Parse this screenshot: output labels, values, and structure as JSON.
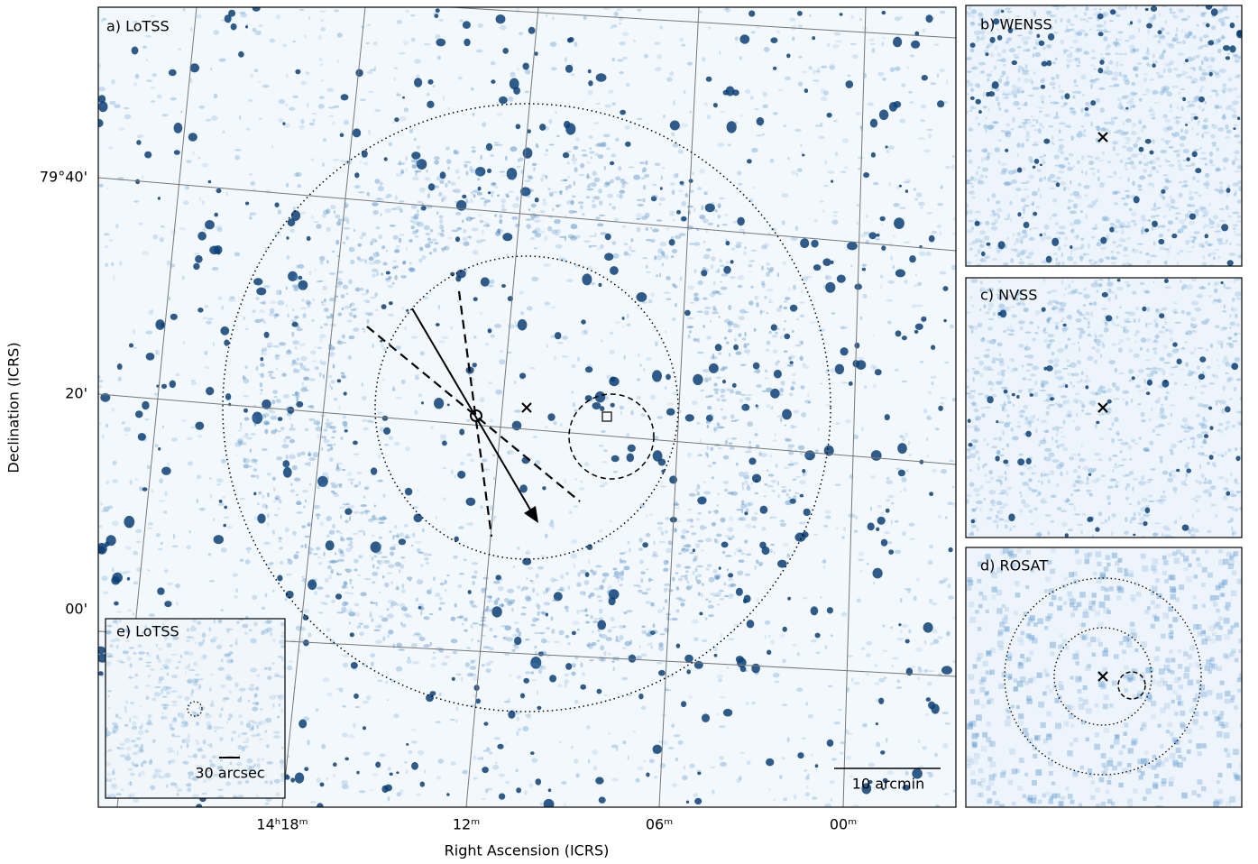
{
  "panels": {
    "a": {
      "label": "a) LoTSS"
    },
    "b": {
      "label": "b) WENSS"
    },
    "c": {
      "label": "c) NVSS"
    },
    "d": {
      "label": "d) ROSAT"
    },
    "e": {
      "label": "e) LoTSS"
    }
  },
  "axes": {
    "y_label": "Declination (ICRS)",
    "x_label": "Right Ascension (ICRS)",
    "y_ticks": [
      "79°40'",
      "20'",
      "00'"
    ],
    "x_ticks": [
      "14ʰ18ᵐ",
      "12ᵐ",
      "06ᵐ",
      "00ᵐ"
    ]
  },
  "annotations": {
    "scale_main": "10 arcmin",
    "scale_inset": "30 arcsec"
  }
}
